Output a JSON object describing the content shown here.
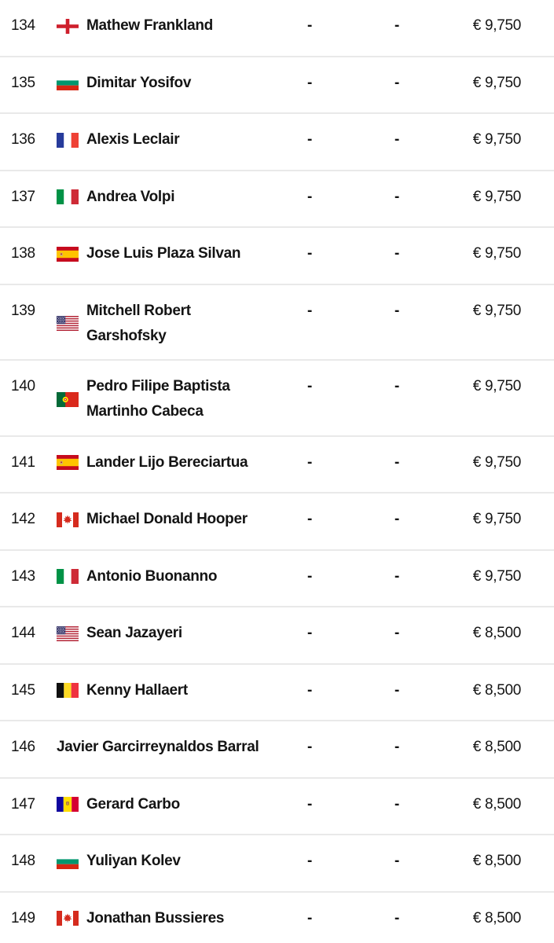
{
  "page": {
    "background_color": "#ffffff",
    "text_color": "#141414",
    "divider_color": "#e9e9e9",
    "currency_symbol": "€"
  },
  "table": {
    "rows": [
      {
        "rank": "134",
        "flag": "england",
        "name": "Mathew Frankland",
        "col1": "-",
        "col2": "-",
        "prize": "€ 9,750"
      },
      {
        "rank": "135",
        "flag": "bulgaria",
        "name": "Dimitar Yosifov",
        "col1": "-",
        "col2": "-",
        "prize": "€ 9,750"
      },
      {
        "rank": "136",
        "flag": "france",
        "name": "Alexis Leclair",
        "col1": "-",
        "col2": "-",
        "prize": "€ 9,750"
      },
      {
        "rank": "137",
        "flag": "italy",
        "name": "Andrea Volpi",
        "col1": "-",
        "col2": "-",
        "prize": "€ 9,750"
      },
      {
        "rank": "138",
        "flag": "spain",
        "name": "Jose Luis Plaza Silvan",
        "col1": "-",
        "col2": "-",
        "prize": "€ 9,750"
      },
      {
        "rank": "139",
        "flag": "usa",
        "name": "Mitchell Robert\nGarshofsky",
        "col1": "-",
        "col2": "-",
        "prize": "€ 9,750"
      },
      {
        "rank": "140",
        "flag": "portugal",
        "name": "Pedro Filipe Baptista\nMartinho Cabeca",
        "col1": "-",
        "col2": "-",
        "prize": "€ 9,750"
      },
      {
        "rank": "141",
        "flag": "spain",
        "name": "Lander Lijo Bereciartua",
        "col1": "-",
        "col2": "-",
        "prize": "€ 9,750"
      },
      {
        "rank": "142",
        "flag": "canada",
        "name": "Michael Donald Hooper",
        "col1": "-",
        "col2": "-",
        "prize": "€ 9,750"
      },
      {
        "rank": "143",
        "flag": "italy",
        "name": "Antonio Buonanno",
        "col1": "-",
        "col2": "-",
        "prize": "€ 9,750"
      },
      {
        "rank": "144",
        "flag": "usa",
        "name": "Sean Jazayeri",
        "col1": "-",
        "col2": "-",
        "prize": "€ 8,500"
      },
      {
        "rank": "145",
        "flag": "belgium",
        "name": "Kenny Hallaert",
        "col1": "-",
        "col2": "-",
        "prize": "€ 8,500"
      },
      {
        "rank": "146",
        "flag": null,
        "name": "Javier Garcirreynaldos Barral",
        "col1": "-",
        "col2": "-",
        "prize": "€ 8,500"
      },
      {
        "rank": "147",
        "flag": "andorra",
        "name": "Gerard Carbo",
        "col1": "-",
        "col2": "-",
        "prize": "€ 8,500"
      },
      {
        "rank": "148",
        "flag": "bulgaria",
        "name": "Yuliyan Kolev",
        "col1": "-",
        "col2": "-",
        "prize": "€ 8,500"
      },
      {
        "rank": "149",
        "flag": "canada",
        "name": "Jonathan Bussieres",
        "col1": "-",
        "col2": "-",
        "prize": "€ 8,500"
      }
    ]
  }
}
